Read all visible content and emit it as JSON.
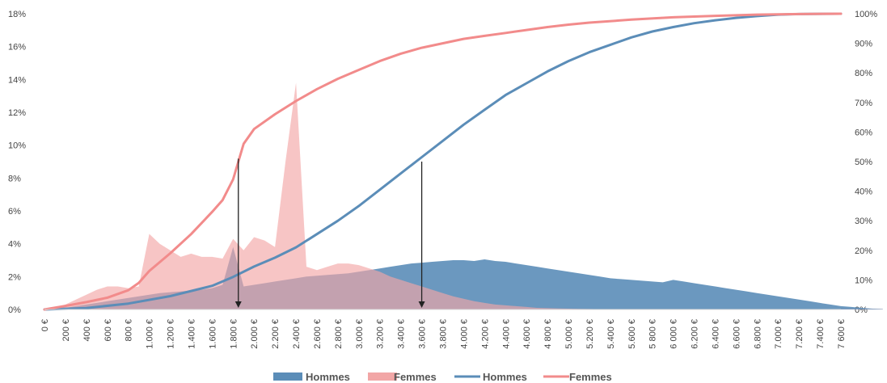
{
  "chart_data": {
    "type": "area",
    "x_step": 100,
    "x_tick_labels": [
      "0 €",
      "200 €",
      "400 €",
      "600 €",
      "800 €",
      "1.000 €",
      "1.200 €",
      "1.400 €",
      "1.600 €",
      "1.800 €",
      "2.000 €",
      "2.200 €",
      "2.400 €",
      "2.600 €",
      "2.800 €",
      "3.000 €",
      "3.200 €",
      "3.400 €",
      "3.600 €",
      "3.800 €",
      "4.000 €",
      "4.200 €",
      "4.400 €",
      "4.600 €",
      "4 800 €",
      "5.000 €",
      "5.200 €",
      "5.400 €",
      "5.600 €",
      "5 800 €",
      "6 000 €",
      "6.200 €",
      "6.400 €",
      "6.600 €",
      "6.800 €",
      "7.000 €",
      "7.200 €",
      "7.400 €",
      "7 600 €"
    ],
    "y_left_ticks": [
      "0%",
      "2%",
      "4%",
      "6%",
      "8%",
      "10%",
      "12%",
      "14%",
      "16%",
      "18%"
    ],
    "y_right_ticks": [
      "0%",
      "10%",
      "20%",
      "30%",
      "40%",
      "50%",
      "60%",
      "70%",
      "80%",
      "90%",
      "100%"
    ],
    "ylim_left": [
      0,
      18
    ],
    "ylim_right": [
      0,
      100
    ],
    "colors": {
      "hommes_area": "#5b8db8",
      "femmes_area": "#f2a6a6",
      "hommes_line": "#5b8db8",
      "femmes_line": "#f28b8b",
      "arrow": "#222222"
    },
    "series": [
      {
        "name": "Hommes",
        "kind": "area",
        "axis": "left",
        "values": [
          0,
          0.05,
          0.1,
          0.2,
          0.3,
          0.4,
          0.5,
          0.6,
          0.7,
          0.8,
          0.9,
          1.0,
          1.05,
          1.1,
          1.15,
          1.2,
          1.3,
          1.5,
          3.8,
          1.4,
          1.5,
          1.6,
          1.7,
          1.8,
          1.9,
          2.0,
          2.05,
          2.1,
          2.15,
          2.2,
          2.3,
          2.4,
          2.5,
          2.6,
          2.7,
          2.8,
          2.85,
          2.9,
          2.95,
          3.0,
          3.0,
          2.95,
          3.05,
          2.95,
          2.9,
          2.8,
          2.7,
          2.6,
          2.5,
          2.4,
          2.3,
          2.2,
          2.1,
          2.0,
          1.9,
          1.85,
          1.8,
          1.75,
          1.7,
          1.65,
          1.8,
          1.7,
          1.6,
          1.5,
          1.4,
          1.3,
          1.2,
          1.1,
          1.0,
          0.9,
          0.8,
          0.7,
          0.6,
          0.5,
          0.4,
          0.3,
          0.2,
          0.15,
          0.1,
          0.05,
          0.03
        ]
      },
      {
        "name": "Femmes",
        "kind": "area",
        "axis": "left",
        "values": [
          0,
          0.1,
          0.3,
          0.6,
          0.9,
          1.2,
          1.4,
          1.4,
          1.3,
          1.4,
          4.6,
          4.0,
          3.6,
          3.2,
          3.4,
          3.2,
          3.2,
          3.1,
          4.3,
          3.6,
          4.4,
          4.2,
          3.8,
          9.0,
          13.8,
          2.6,
          2.4,
          2.6,
          2.8,
          2.8,
          2.7,
          2.5,
          2.3,
          2.0,
          1.8,
          1.6,
          1.4,
          1.2,
          1.0,
          0.8,
          0.65,
          0.5,
          0.4,
          0.3,
          0.25,
          0.2,
          0.15,
          0.1,
          0.08,
          0.06,
          0.05,
          0.04,
          0.03,
          0.02,
          0.02,
          0.01,
          0.01,
          0.01,
          0.01,
          0.01,
          0.01,
          0.01,
          0.01,
          0.01,
          0.01,
          0.01,
          0.01,
          0.01,
          0.01,
          0.01,
          0.01,
          0.01,
          0.01,
          0.01,
          0.01,
          0.01,
          0.01,
          0.01,
          0.01,
          0.01,
          0.01
        ]
      },
      {
        "name": "Hommes",
        "kind": "line",
        "axis": "right",
        "points": [
          [
            0,
            0
          ],
          [
            400,
            0.5
          ],
          [
            800,
            2
          ],
          [
            1200,
            4.5
          ],
          [
            1600,
            8
          ],
          [
            1800,
            11
          ],
          [
            2000,
            14.5
          ],
          [
            2200,
            17.5
          ],
          [
            2400,
            21
          ],
          [
            2600,
            25.5
          ],
          [
            2800,
            30
          ],
          [
            3000,
            35
          ],
          [
            3200,
            40.5
          ],
          [
            3400,
            46
          ],
          [
            3600,
            51.5
          ],
          [
            3800,
            57
          ],
          [
            4000,
            62.5
          ],
          [
            4200,
            67.5
          ],
          [
            4400,
            72.5
          ],
          [
            4600,
            76.5
          ],
          [
            4800,
            80.5
          ],
          [
            5000,
            84
          ],
          [
            5200,
            87
          ],
          [
            5400,
            89.5
          ],
          [
            5600,
            92
          ],
          [
            5800,
            94
          ],
          [
            6000,
            95.5
          ],
          [
            6200,
            96.8
          ],
          [
            6400,
            97.8
          ],
          [
            6600,
            98.6
          ],
          [
            6800,
            99.2
          ],
          [
            7000,
            99.7
          ],
          [
            7200,
            99.9
          ],
          [
            7600,
            100
          ]
        ]
      },
      {
        "name": "Femmes",
        "kind": "line",
        "axis": "right",
        "points": [
          [
            0,
            0
          ],
          [
            200,
            1.2
          ],
          [
            400,
            2.5
          ],
          [
            600,
            4
          ],
          [
            800,
            6.5
          ],
          [
            900,
            9
          ],
          [
            1000,
            13
          ],
          [
            1200,
            19
          ],
          [
            1400,
            25.5
          ],
          [
            1600,
            33
          ],
          [
            1700,
            37
          ],
          [
            1800,
            44
          ],
          [
            1900,
            56
          ],
          [
            2000,
            61
          ],
          [
            2200,
            66
          ],
          [
            2400,
            70.5
          ],
          [
            2600,
            74.5
          ],
          [
            2800,
            78
          ],
          [
            3000,
            81
          ],
          [
            3200,
            84
          ],
          [
            3400,
            86.5
          ],
          [
            3600,
            88.5
          ],
          [
            3800,
            90
          ],
          [
            4000,
            91.5
          ],
          [
            4200,
            92.5
          ],
          [
            4400,
            93.5
          ],
          [
            4600,
            94.5
          ],
          [
            4800,
            95.5
          ],
          [
            5000,
            96.3
          ],
          [
            5200,
            97
          ],
          [
            5600,
            98
          ],
          [
            6000,
            98.8
          ],
          [
            6400,
            99.3
          ],
          [
            6800,
            99.7
          ],
          [
            7200,
            99.9
          ],
          [
            7600,
            100
          ]
        ]
      }
    ],
    "annotations": [
      {
        "kind": "arrow-down",
        "x": 1850,
        "from_right_pct": 51
      },
      {
        "kind": "arrow-down",
        "x": 3600,
        "from_right_pct": 50
      }
    ],
    "legend": {
      "placement": "bottom",
      "items": [
        {
          "label": "Hommes",
          "marker": "area",
          "color": "#5b8db8"
        },
        {
          "label": "Femmes",
          "marker": "area",
          "color": "#f2a6a6"
        },
        {
          "label": "Hommes",
          "marker": "line",
          "color": "#5b8db8"
        },
        {
          "label": "Femmes",
          "marker": "line",
          "color": "#f28b8b"
        }
      ]
    }
  }
}
